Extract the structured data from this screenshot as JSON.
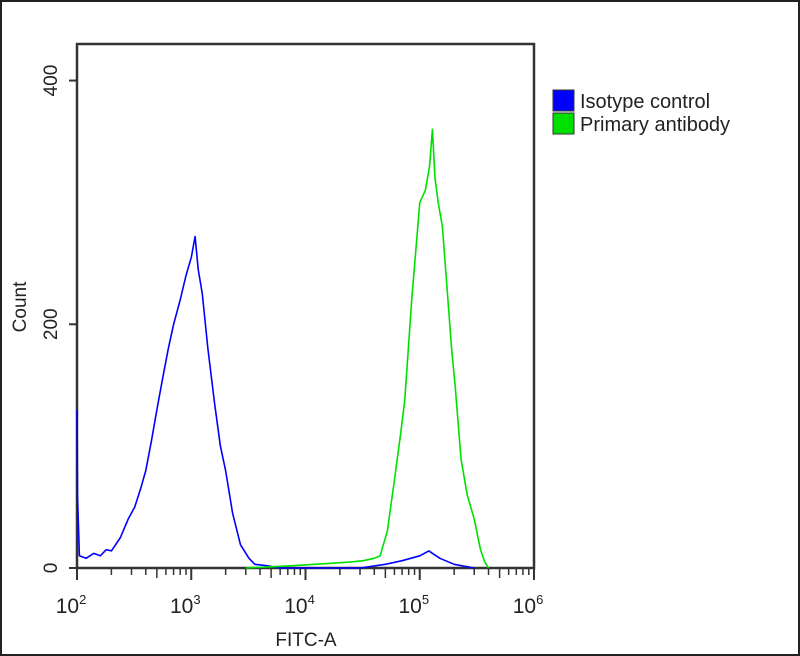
{
  "chart_data": {
    "type": "line",
    "title": "",
    "xlabel": "FITC-A",
    "ylabel": "Count",
    "xscale": "log",
    "xlim": [
      100,
      1000000
    ],
    "ylim": [
      0,
      430
    ],
    "xticks": [
      100,
      1000,
      10000,
      100000,
      1000000
    ],
    "xtick_labels": [
      {
        "base": "10",
        "exp": "2"
      },
      {
        "base": "10",
        "exp": "3"
      },
      {
        "base": "10",
        "exp": "4"
      },
      {
        "base": "10",
        "exp": "5"
      },
      {
        "base": "10",
        "exp": "6"
      }
    ],
    "yticks": [
      0,
      200,
      400
    ],
    "ytick_labels": [
      "0",
      "200",
      "400"
    ],
    "grid": false,
    "legend_placement": "outside-right-top",
    "series": [
      {
        "name": "Isotype control",
        "color": "#0000ff",
        "x": [
          100,
          101,
          105,
          120,
          140,
          160,
          180,
          200,
          240,
          280,
          320,
          360,
          400,
          450,
          500,
          560,
          630,
          700,
          800,
          900,
          1000,
          1080,
          1150,
          1250,
          1400,
          1600,
          1800,
          2000,
          2300,
          2700,
          3200,
          3600,
          4500,
          6000,
          10000,
          30000,
          50000,
          70000,
          100000,
          120000,
          150000,
          200000,
          300000
        ],
        "y": [
          130,
          60,
          10,
          8,
          12,
          10,
          15,
          14,
          25,
          40,
          50,
          65,
          80,
          105,
          130,
          155,
          180,
          200,
          220,
          240,
          255,
          272,
          245,
          225,
          180,
          135,
          100,
          80,
          45,
          19,
          8,
          3,
          2,
          0,
          0,
          0,
          3,
          6,
          10,
          14,
          8,
          3,
          0
        ]
      },
      {
        "name": "Primary antibody",
        "color": "#00e000",
        "x": [
          3000,
          5000,
          8000,
          12000,
          18000,
          25000,
          32000,
          40000,
          45000,
          52000,
          60000,
          68000,
          74000,
          85000,
          100000,
          112000,
          122000,
          129000,
          136000,
          145000,
          158000,
          170000,
          190000,
          204000,
          230000,
          260000,
          300000,
          340000,
          370000,
          400000
        ],
        "y": [
          0,
          1,
          2,
          3,
          4,
          5,
          6,
          8,
          10,
          30,
          72,
          110,
          138,
          220,
          300,
          310,
          330,
          360,
          320,
          300,
          280,
          240,
          180,
          150,
          89,
          60,
          40,
          15,
          5,
          0
        ]
      }
    ]
  }
}
